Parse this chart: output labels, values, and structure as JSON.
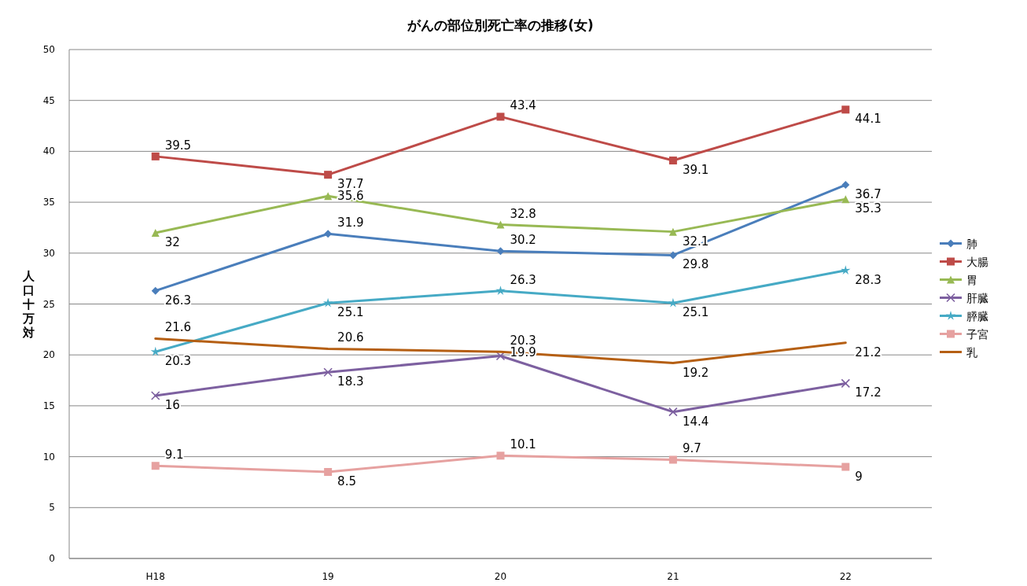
{
  "chart_data": {
    "type": "line",
    "title": "がんの部位別死亡率の推移(女)",
    "ylabel": "人口十万対",
    "categories": [
      "H18",
      "19",
      "20",
      "21",
      "22"
    ],
    "ylim": [
      0,
      50
    ],
    "yticks": [
      0,
      5,
      10,
      15,
      20,
      25,
      30,
      35,
      40,
      45,
      50
    ],
    "grid": "y",
    "legend": "right",
    "data_labels": true,
    "series": [
      {
        "name": "肺",
        "color": "#4a7ebb",
        "marker": "diamond",
        "values": [
          26.3,
          31.9,
          30.2,
          29.8,
          36.7
        ]
      },
      {
        "name": "大腸",
        "color": "#be4b48",
        "marker": "square",
        "values": [
          39.5,
          37.7,
          43.4,
          39.1,
          44.1
        ]
      },
      {
        "name": "胃",
        "color": "#98b954",
        "marker": "triangle",
        "values": [
          32,
          35.6,
          32.8,
          32.1,
          35.3
        ]
      },
      {
        "name": "肝臓",
        "color": "#7d60a0",
        "marker": "cross",
        "values": [
          16,
          18.3,
          19.9,
          14.4,
          17.2
        ]
      },
      {
        "name": "膵臓",
        "color": "#46aac5",
        "marker": "star",
        "values": [
          20.3,
          25.1,
          26.3,
          25.1,
          28.3
        ]
      },
      {
        "name": "子宮",
        "color": "#e6a1a0",
        "marker": "square",
        "values": [
          9.1,
          8.5,
          10.1,
          9.7,
          9
        ]
      },
      {
        "name": "乳",
        "color": "#b55f13",
        "marker": "none",
        "values": [
          21.6,
          20.6,
          20.3,
          19.2,
          21.2
        ]
      }
    ]
  }
}
